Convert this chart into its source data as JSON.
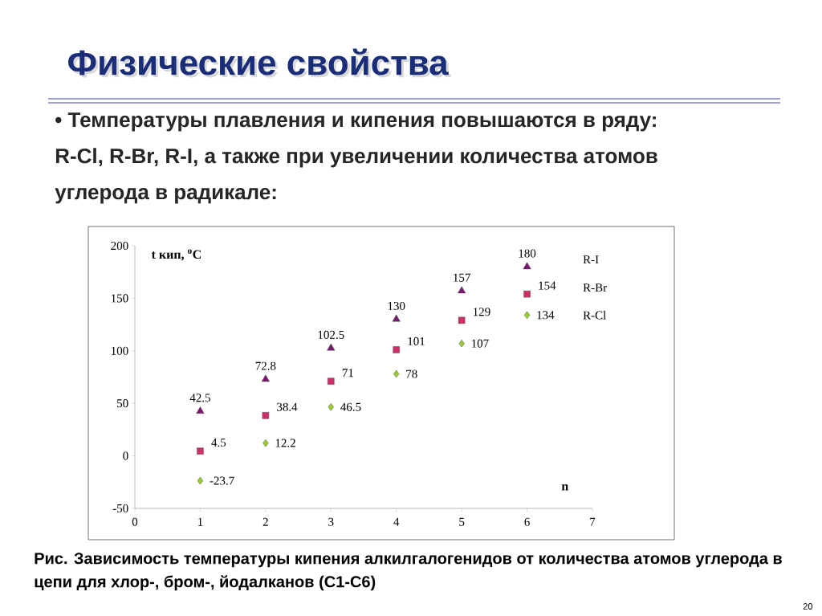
{
  "chart_data": {
    "type": "scatter",
    "title": "Физические свойства",
    "subtitle": "• Температуры плавления и кипения повышаются в ряду: R-Cl, R-Br, R-I, а также при увеличении количества атомов углерода в радикале:",
    "xlabel": "n",
    "ylabel": "t кип, $^{o}$C",
    "annotations": [
      "Рис. Зависимость температуры кипения алкилгалогенидов от количества атомов углерода в цепи для хлор-, бром-, йодалканов (С1-С6)",
      "20"
    ],
    "x": [
      1,
      2,
      3,
      4,
      5,
      6
    ],
    "series": [
      {
        "name": "R-I",
        "color": "#7a1a6e",
        "marker": "triangle",
        "values": [
          42.5,
          72.8,
          102.5,
          130,
          157,
          180
        ]
      },
      {
        "name": "R-Br",
        "color": "#d0306a",
        "marker": "square",
        "values": [
          4.5,
          38.4,
          71,
          101,
          129,
          154
        ]
      },
      {
        "name": "R-Cl",
        "color": "#9acd32",
        "marker": "diamond",
        "values": [
          -23.7,
          12.2,
          46.5,
          78,
          107,
          134
        ]
      }
    ],
    "xlim": [
      0,
      7
    ],
    "xticks": [
      0,
      1,
      2,
      3,
      4,
      5,
      6,
      7
    ],
    "ylim": [
      -50,
      200
    ],
    "yticks": [
      -50,
      0,
      50,
      100,
      150,
      200
    ],
    "grid": false,
    "data_labels": true
  }
}
